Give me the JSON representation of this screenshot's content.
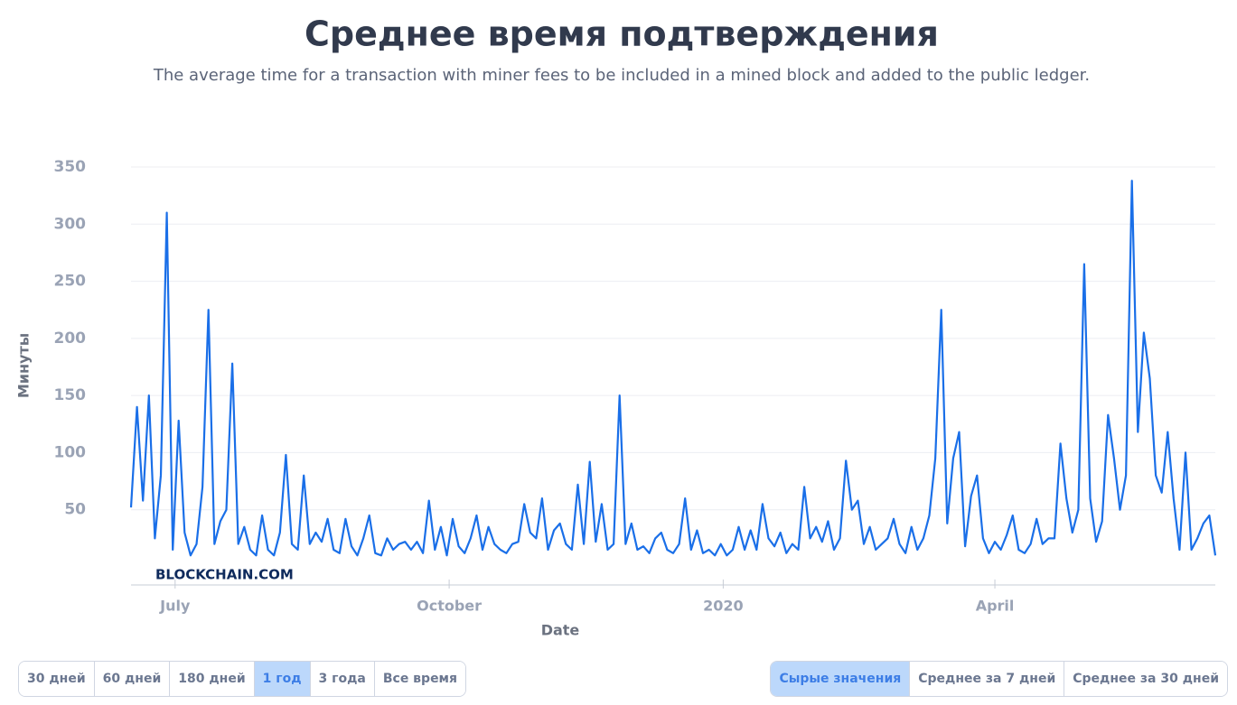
{
  "header": {
    "title": "Среднее время подтверждения",
    "subtitle": "The average time for a transaction with miner fees to be included in a mined block and added to the public ledger."
  },
  "chart_data": {
    "type": "line",
    "x_label": "Date",
    "y_label": "Минуты",
    "watermark": "BLOCKCHAIN.COM",
    "color": "#1a6fe8",
    "grid": true,
    "xlim": [
      0,
      182
    ],
    "xticks": [
      {
        "value": 7.4,
        "label": "July"
      },
      {
        "value": 53.4,
        "label": "October"
      },
      {
        "value": 99.4,
        "label": "2020"
      },
      {
        "value": 145,
        "label": "April"
      }
    ],
    "ylim": [
      0,
      350
    ],
    "yticks": [
      50,
      100,
      150,
      200,
      250,
      300,
      350
    ],
    "values": [
      52,
      140,
      58,
      150,
      25,
      80,
      310,
      15,
      128,
      30,
      10,
      20,
      70,
      225,
      20,
      40,
      50,
      178,
      20,
      35,
      15,
      10,
      45,
      15,
      10,
      30,
      98,
      20,
      15,
      80,
      20,
      30,
      22,
      42,
      15,
      12,
      42,
      18,
      10,
      25,
      45,
      12,
      10,
      25,
      15,
      20,
      22,
      15,
      22,
      12,
      58,
      15,
      35,
      10,
      42,
      18,
      12,
      25,
      45,
      15,
      35,
      20,
      15,
      12,
      20,
      22,
      55,
      30,
      25,
      60,
      15,
      32,
      38,
      20,
      15,
      72,
      20,
      92,
      22,
      55,
      15,
      20,
      150,
      20,
      38,
      15,
      18,
      12,
      25,
      30,
      15,
      12,
      20,
      60,
      15,
      32,
      12,
      15,
      10,
      20,
      10,
      15,
      35,
      15,
      32,
      15,
      55,
      25,
      18,
      30,
      12,
      20,
      15,
      70,
      25,
      35,
      22,
      40,
      15,
      25,
      93,
      50,
      58,
      20,
      35,
      15,
      20,
      25,
      42,
      20,
      12,
      35,
      15,
      25,
      45,
      95,
      225,
      38,
      95,
      118,
      18,
      62,
      80,
      25,
      12,
      22,
      15,
      28,
      45,
      15,
      12,
      20,
      42,
      20,
      25,
      25,
      108,
      60,
      30,
      50,
      265,
      60,
      22,
      40,
      133,
      95,
      50,
      80,
      338,
      118,
      205,
      165,
      80,
      65,
      118,
      60,
      15,
      100,
      15,
      25,
      38,
      45,
      10
    ]
  },
  "range_buttons": {
    "items": [
      "30 дней",
      "60 дней",
      "180 дней",
      "1 год",
      "3 года",
      "Все время"
    ],
    "active": 3
  },
  "mode_buttons": {
    "items": [
      "Сырые значения",
      "Среднее за 7 дней",
      "Среднее за 30 дней"
    ],
    "active": 0
  }
}
